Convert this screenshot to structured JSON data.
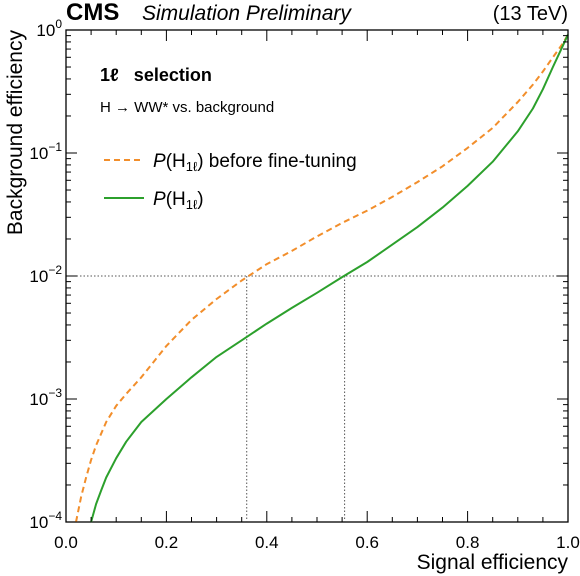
{
  "header": {
    "experiment": "CMS",
    "status": "Simulation Preliminary",
    "energy": "(13 TeV)"
  },
  "annotations": {
    "selection": "1ℓ   selection",
    "process": "H → WW* vs. background"
  },
  "colors": {
    "series_before": "#f28e2b",
    "series_after": "#2ca02c",
    "reference_lines": "#555555"
  },
  "chart_data": {
    "type": "line",
    "title": "",
    "xlabel": "Signal efficiency",
    "ylabel": "Background efficiency",
    "xlim": [
      0.0,
      1.0
    ],
    "ylim": [
      0.0001,
      1.0
    ],
    "yscale": "log",
    "x_ticks": [
      "0.0",
      "0.2",
      "0.4",
      "0.6",
      "0.8",
      "1.0"
    ],
    "y_ticks": [
      {
        "value": 0.0001,
        "base": "10",
        "exp": "−4"
      },
      {
        "value": 0.001,
        "base": "10",
        "exp": "−3"
      },
      {
        "value": 0.01,
        "base": "10",
        "exp": "−2"
      },
      {
        "value": 0.1,
        "base": "10",
        "exp": "−1"
      },
      {
        "value": 1,
        "base": "10",
        "exp": "0"
      }
    ],
    "legend_location": "upper-left",
    "reference_lines": {
      "background_efficiency": 0.01,
      "signal_efficiency_before": 0.36,
      "signal_efficiency_after": 0.555
    },
    "series": [
      {
        "label_prefix": "P",
        "label_body": "(H",
        "label_sub": "1ℓ",
        "label_suffix": ") before fine-tuning",
        "style": "dashed",
        "x": [
          0.02,
          0.03,
          0.04,
          0.05,
          0.06,
          0.08,
          0.1,
          0.12,
          0.15,
          0.2,
          0.25,
          0.3,
          0.35,
          0.4,
          0.45,
          0.5,
          0.55,
          0.6,
          0.65,
          0.7,
          0.75,
          0.8,
          0.85,
          0.9,
          0.93,
          0.95,
          0.97,
          0.99,
          1.0
        ],
        "y": [
          0.0001,
          0.00016,
          0.00023,
          0.00032,
          0.00042,
          0.00065,
          0.00088,
          0.0011,
          0.0015,
          0.0027,
          0.0044,
          0.0065,
          0.0092,
          0.0125,
          0.016,
          0.021,
          0.027,
          0.034,
          0.044,
          0.058,
          0.078,
          0.11,
          0.16,
          0.26,
          0.36,
          0.46,
          0.6,
          0.78,
          0.92
        ]
      },
      {
        "label_prefix": "P",
        "label_body": "(H",
        "label_sub": "1ℓ",
        "label_suffix": ")",
        "style": "solid",
        "x": [
          0.05,
          0.06,
          0.07,
          0.08,
          0.1,
          0.12,
          0.15,
          0.2,
          0.25,
          0.3,
          0.35,
          0.4,
          0.45,
          0.5,
          0.55,
          0.6,
          0.65,
          0.7,
          0.75,
          0.8,
          0.85,
          0.9,
          0.93,
          0.95,
          0.97,
          0.99,
          1.0
        ],
        "y": [
          0.0001,
          0.00014,
          0.00018,
          0.00023,
          0.00033,
          0.00045,
          0.00065,
          0.001,
          0.0015,
          0.0022,
          0.003,
          0.0041,
          0.0055,
          0.0073,
          0.0098,
          0.013,
          0.018,
          0.025,
          0.036,
          0.054,
          0.085,
          0.15,
          0.23,
          0.33,
          0.5,
          0.75,
          0.92
        ]
      }
    ]
  }
}
